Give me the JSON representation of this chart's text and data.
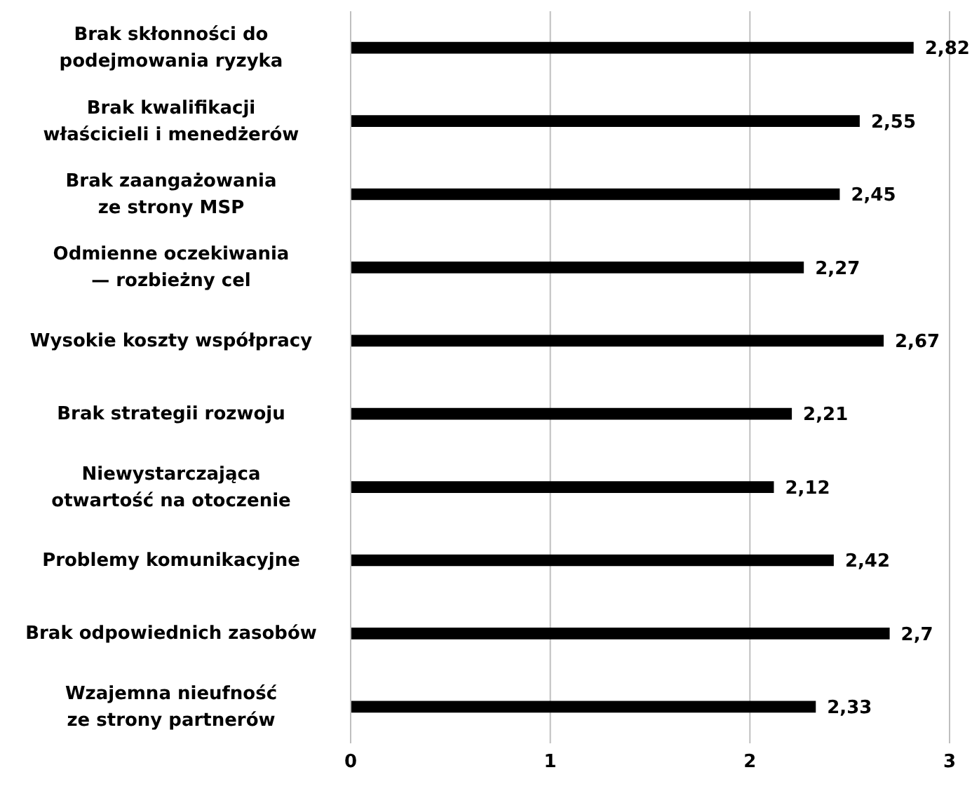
{
  "chart_data": {
    "type": "bar",
    "orientation": "horizontal",
    "categories": [
      "Brak skłonności do\npodejmowania ryzyka",
      "Brak kwalifikacji\nwłaścicieli i menedżerów",
      "Brak zaangażowania\nze strony MSP",
      "Odmienne oczekiwania\n— rozbieżny cel",
      "Wysokie koszty współpracy",
      "Brak strategii rozwoju",
      "Niewystarczająca\notwartość na otoczenie",
      "Problemy komunikacyjne",
      "Brak odpowiednich zasobów",
      "Wzajemna nieufność\nze strony partnerów"
    ],
    "values": [
      2.82,
      2.55,
      2.45,
      2.27,
      2.67,
      2.21,
      2.12,
      2.42,
      2.7,
      2.33
    ],
    "value_labels": [
      "2,82",
      "2,55",
      "2,45",
      "2,27",
      "2,67",
      "2,21",
      "2,12",
      "2,42",
      "2,7",
      "2,33"
    ],
    "color": "#000000",
    "xlim": [
      0,
      3
    ],
    "xticks": [
      0,
      1,
      2,
      3
    ],
    "grid": "x"
  }
}
